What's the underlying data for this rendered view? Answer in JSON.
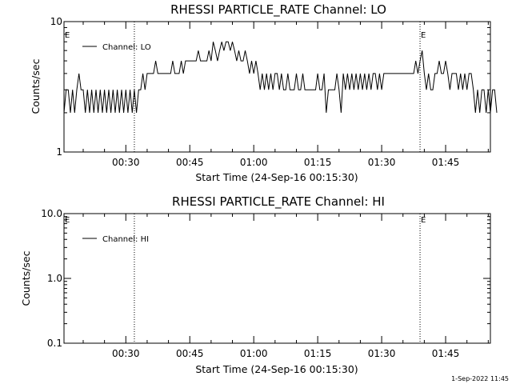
{
  "footer_timestamp": "1-Sep-2022 11:45",
  "chart_data": [
    {
      "type": "line",
      "title": "RHESSI PARTICLE_RATE Channel: LO",
      "xlabel": "Start Time (24-Sep-16 00:15:30)",
      "ylabel": "Counts/sec",
      "y_scale": "log",
      "ylim": [
        1,
        10
      ],
      "y_ticks": [
        1,
        10
      ],
      "y_tick_labels": [
        "1",
        "10"
      ],
      "xlim_minutes": [
        15.5,
        115.5
      ],
      "x_ticks_minutes": [
        30,
        45,
        60,
        75,
        90,
        105
      ],
      "x_tick_labels": [
        "00:30",
        "00:45",
        "01:00",
        "01:15",
        "01:30",
        "01:45"
      ],
      "grid": false,
      "legend": "top-left",
      "series": [
        {
          "name": "Channel: LO",
          "color": "#000000",
          "x_start_minutes": 15.5,
          "x_step_minutes": 0.5,
          "values": [
            2,
            3,
            3,
            2,
            3,
            2,
            3,
            4,
            3,
            3,
            2,
            3,
            2,
            3,
            2,
            3,
            2,
            3,
            2,
            3,
            2,
            3,
            2,
            3,
            2,
            3,
            2,
            3,
            2,
            3,
            2,
            3,
            2,
            3,
            2,
            3,
            3,
            4,
            3,
            4,
            4,
            4,
            4,
            5,
            4,
            4,
            4,
            4,
            4,
            4,
            4,
            5,
            4,
            4,
            4,
            5,
            4,
            5,
            5,
            5,
            5,
            5,
            5,
            6,
            5,
            5,
            5,
            5,
            6,
            5,
            7,
            6,
            5,
            6,
            7,
            6,
            7,
            7,
            6,
            7,
            6,
            5,
            6,
            5,
            5,
            6,
            5,
            4,
            5,
            4,
            5,
            4,
            3,
            4,
            3,
            4,
            3,
            4,
            3,
            4,
            4,
            3,
            4,
            3,
            3,
            4,
            3,
            3,
            3,
            4,
            3,
            3,
            4,
            3,
            3,
            3,
            3,
            3,
            3,
            4,
            3,
            3,
            4,
            2,
            3,
            3,
            3,
            3,
            4,
            3,
            2,
            4,
            3,
            4,
            3,
            4,
            3,
            4,
            3,
            4,
            3,
            4,
            3,
            4,
            3,
            4,
            4,
            3,
            4,
            3,
            4,
            4,
            4,
            4,
            4,
            4,
            4,
            4,
            4,
            4,
            4,
            4,
            4,
            4,
            4,
            5,
            4,
            5,
            6,
            4,
            3,
            4,
            3,
            3,
            4,
            4,
            5,
            4,
            4,
            5,
            4,
            3,
            4,
            4,
            4,
            3,
            4,
            3,
            4,
            3,
            4,
            4,
            3,
            2,
            3,
            2,
            3,
            3,
            2,
            3,
            2,
            3,
            3,
            2
          ]
        }
      ],
      "events": [
        {
          "x_minutes": 32.0,
          "label": ""
        },
        {
          "x_minutes": 99.0,
          "label": "E"
        },
        {
          "x_minutes": 115.5,
          "label": ""
        }
      ],
      "corner_label": "E"
    },
    {
      "type": "line",
      "title": "RHESSI PARTICLE_RATE Channel: HI",
      "xlabel": "Start Time (24-Sep-16 00:15:30)",
      "ylabel": "Counts/sec",
      "y_scale": "log",
      "ylim": [
        0.1,
        10
      ],
      "y_ticks": [
        0.1,
        1,
        10
      ],
      "y_tick_labels": [
        "0.1",
        "1.0",
        "10.0"
      ],
      "xlim_minutes": [
        15.5,
        115.5
      ],
      "x_ticks_minutes": [
        30,
        45,
        60,
        75,
        90,
        105
      ],
      "x_tick_labels": [
        "00:30",
        "00:45",
        "01:00",
        "01:15",
        "01:30",
        "01:45"
      ],
      "grid": false,
      "legend": "top-left",
      "series": [
        {
          "name": "Channel: HI",
          "color": "#000000",
          "values": []
        }
      ],
      "events": [
        {
          "x_minutes": 32.0,
          "label": ""
        },
        {
          "x_minutes": 99.0,
          "label": "E"
        },
        {
          "x_minutes": 115.5,
          "label": ""
        }
      ],
      "corner_label": "E"
    }
  ]
}
